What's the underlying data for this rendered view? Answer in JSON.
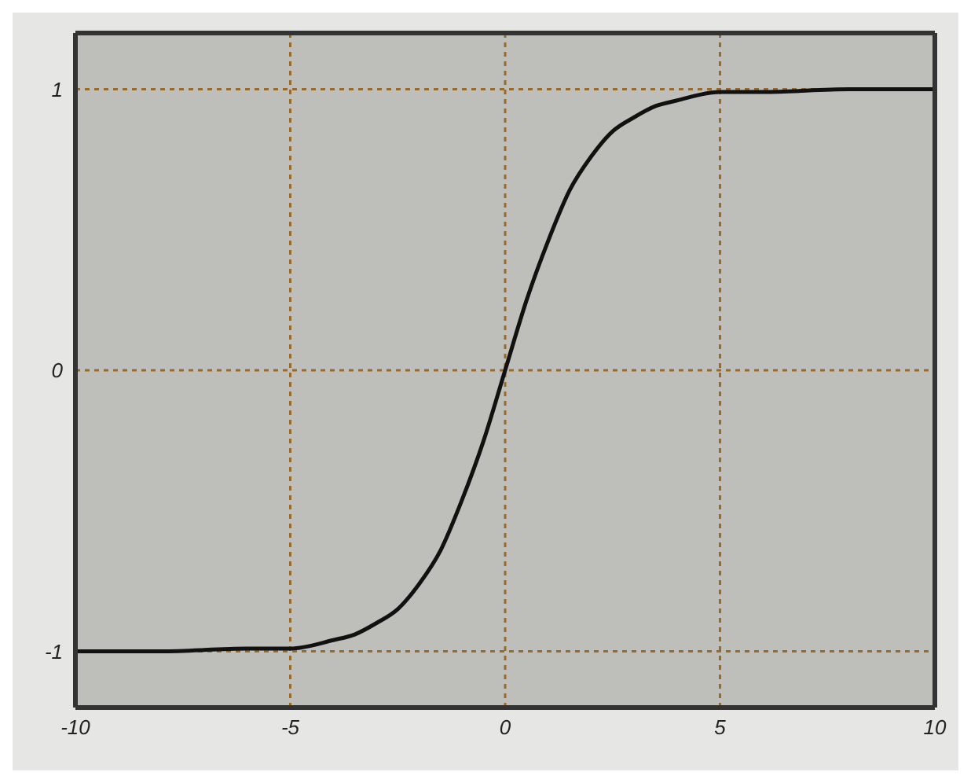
{
  "chart_data": {
    "type": "line",
    "x": [
      -10,
      -8,
      -6,
      -5,
      -4,
      -3.5,
      -3,
      -2.5,
      -2,
      -1.5,
      -1,
      -0.5,
      0,
      0.5,
      1,
      1.5,
      2,
      2.5,
      3,
      3.5,
      4,
      5,
      6,
      8,
      10
    ],
    "series": [
      {
        "color": "#111111",
        "values": [
          -1.0,
          -1.0,
          -0.99,
          -0.99,
          -0.96,
          -0.94,
          -0.9,
          -0.85,
          -0.76,
          -0.64,
          -0.46,
          -0.25,
          0,
          0.25,
          0.46,
          0.64,
          0.76,
          0.85,
          0.9,
          0.94,
          0.96,
          0.99,
          0.99,
          1.0,
          1.0
        ]
      }
    ],
    "xlim": [
      -10,
      10
    ],
    "xticks": [
      -10,
      -5,
      0,
      5,
      10
    ],
    "ylim": [
      -1.2,
      1.2
    ],
    "yticks": [
      -1,
      0,
      1
    ],
    "grid": true,
    "marker": "none",
    "line_style": "solid"
  }
}
